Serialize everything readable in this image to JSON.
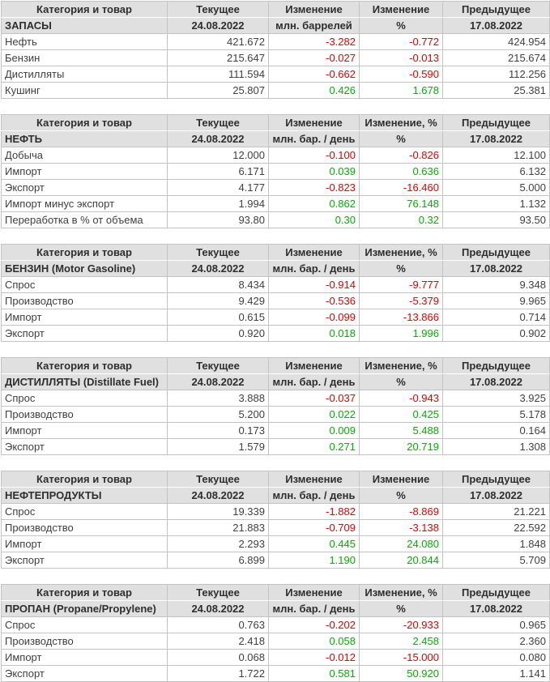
{
  "colors": {
    "negative_value": "#e00000",
    "positive_value": "#00b000",
    "header_background": "#e0e0e0",
    "grid_border": "#c3c3c3",
    "text": "#3f3f3f"
  },
  "tables": [
    {
      "header_top": {
        "category": "Категория и товар",
        "current": "Текущее",
        "change": "Изменение",
        "change_pct": "Изменение",
        "previous": "Предыдущее"
      },
      "header_sub": {
        "section": "ЗАПАСЫ",
        "current_date": "24.08.2022",
        "change_unit": "млн. баррелей",
        "change_pct_unit": "%",
        "previous_date": "17.08.2022"
      },
      "rows": [
        {
          "label": "Нефть",
          "current": "421.672",
          "change": "-3.282",
          "change_pct": "-0.772",
          "previous": "424.954"
        },
        {
          "label": "Бензин",
          "current": "215.647",
          "change": "-0.027",
          "change_pct": "-0.013",
          "previous": "215.674"
        },
        {
          "label": "Дистилляты",
          "current": "111.594",
          "change": "-0.662",
          "change_pct": "-0.590",
          "previous": "112.256"
        },
        {
          "label": "Кушинг",
          "current": "25.807",
          "change": "0.426",
          "change_pct": "1.678",
          "previous": "25.381"
        }
      ]
    },
    {
      "header_top": {
        "category": "Категория и товар",
        "current": "Текущее",
        "change": "Изменение",
        "change_pct": "Изменение, %",
        "previous": "Предыдущее"
      },
      "header_sub": {
        "section": "НЕФТЬ",
        "current_date": "24.08.2022",
        "change_unit": "млн. бар. / день",
        "change_pct_unit": "%",
        "previous_date": "17.08.2022"
      },
      "rows": [
        {
          "label": "Добыча",
          "current": "12.000",
          "change": "-0.100",
          "change_pct": "-0.826",
          "previous": "12.100"
        },
        {
          "label": "Импорт",
          "current": "6.171",
          "change": "0.039",
          "change_pct": "0.636",
          "previous": "6.132"
        },
        {
          "label": "Экспорт",
          "current": "4.177",
          "change": "-0.823",
          "change_pct": "-16.460",
          "previous": "5.000"
        },
        {
          "label": "Импорт минус экспорт",
          "current": "1.994",
          "change": "0.862",
          "change_pct": "76.148",
          "previous": "1.132"
        },
        {
          "label": "Переработка в % от объема",
          "current": "93.80",
          "change": "0.30",
          "change_pct": "0.32",
          "previous": "93.50"
        }
      ]
    },
    {
      "header_top": {
        "category": "Категория и товар",
        "current": "Текущее",
        "change": "Изменение",
        "change_pct": "Изменение, %",
        "previous": "Предыдущее"
      },
      "header_sub": {
        "section": "БЕНЗИН (Motor Gasoline)",
        "current_date": "24.08.2022",
        "change_unit": "млн. бар. / день",
        "change_pct_unit": "%",
        "previous_date": "17.08.2022"
      },
      "rows": [
        {
          "label": "Спрос",
          "current": "8.434",
          "change": "-0.914",
          "change_pct": "-9.777",
          "previous": "9.348"
        },
        {
          "label": "Производство",
          "current": "9.429",
          "change": "-0.536",
          "change_pct": "-5.379",
          "previous": "9.965"
        },
        {
          "label": "Импорт",
          "current": "0.615",
          "change": "-0.099",
          "change_pct": "-13.866",
          "previous": "0.714"
        },
        {
          "label": "Экспорт",
          "current": "0.920",
          "change": "0.018",
          "change_pct": "1.996",
          "previous": "0.902"
        }
      ]
    },
    {
      "header_top": {
        "category": "Категория и товар",
        "current": "Текущее",
        "change": "Изменение",
        "change_pct": "Изменение, %",
        "previous": "Предыдущее"
      },
      "header_sub": {
        "section": "ДИСТИЛЛЯТЫ (Distillate Fuel)",
        "current_date": "24.08.2022",
        "change_unit": "млн. бар. / день",
        "change_pct_unit": "%",
        "previous_date": "17.08.2022"
      },
      "rows": [
        {
          "label": "Спрос",
          "current": "3.888",
          "change": "-0.037",
          "change_pct": "-0.943",
          "previous": "3.925"
        },
        {
          "label": "Производство",
          "current": "5.200",
          "change": "0.022",
          "change_pct": "0.425",
          "previous": "5.178"
        },
        {
          "label": "Импорт",
          "current": "0.173",
          "change": "0.009",
          "change_pct": "5.488",
          "previous": "0.164"
        },
        {
          "label": "Экспорт",
          "current": "1.579",
          "change": "0.271",
          "change_pct": "20.719",
          "previous": "1.308"
        }
      ]
    },
    {
      "header_top": {
        "category": "Категория и товар",
        "current": "Текущее",
        "change": "Изменение",
        "change_pct": "Изменение",
        "previous": "Предыдущее"
      },
      "header_sub": {
        "section": "НЕФТЕПРОДУКТЫ",
        "current_date": "24.08.2022",
        "change_unit": "млн. бар. / день",
        "change_pct_unit": "%",
        "previous_date": "17.08.2022"
      },
      "rows": [
        {
          "label": "Спрос",
          "current": "19.339",
          "change": "-1.882",
          "change_pct": "-8.869",
          "previous": "21.221"
        },
        {
          "label": "Производство",
          "current": "21.883",
          "change": "-0.709",
          "change_pct": "-3.138",
          "previous": "22.592"
        },
        {
          "label": "Импорт",
          "current": "2.293",
          "change": "0.445",
          "change_pct": "24.080",
          "previous": "1.848"
        },
        {
          "label": "Экспорт",
          "current": "6.899",
          "change": "1.190",
          "change_pct": "20.844",
          "previous": "5.709"
        }
      ]
    },
    {
      "header_top": {
        "category": "Категория и товар",
        "current": "Текущее",
        "change": "Изменение",
        "change_pct": "Изменение, %",
        "previous": "Предыдущее"
      },
      "header_sub": {
        "section": "ПРОПАН (Propane/Propylene)",
        "current_date": "24.08.2022",
        "change_unit": "млн. бар. / день",
        "change_pct_unit": "%",
        "previous_date": "17.08.2022"
      },
      "rows": [
        {
          "label": "Спрос",
          "current": "0.763",
          "change": "-0.202",
          "change_pct": "-20.933",
          "previous": "0.965"
        },
        {
          "label": "Производство",
          "current": "2.418",
          "change": "0.058",
          "change_pct": "2.458",
          "previous": "2.360"
        },
        {
          "label": "Импорт",
          "current": "0.068",
          "change": "-0.012",
          "change_pct": "-15.000",
          "previous": "0.080"
        },
        {
          "label": "Экспорт",
          "current": "1.722",
          "change": "0.581",
          "change_pct": "50.920",
          "previous": "1.141"
        }
      ]
    }
  ]
}
